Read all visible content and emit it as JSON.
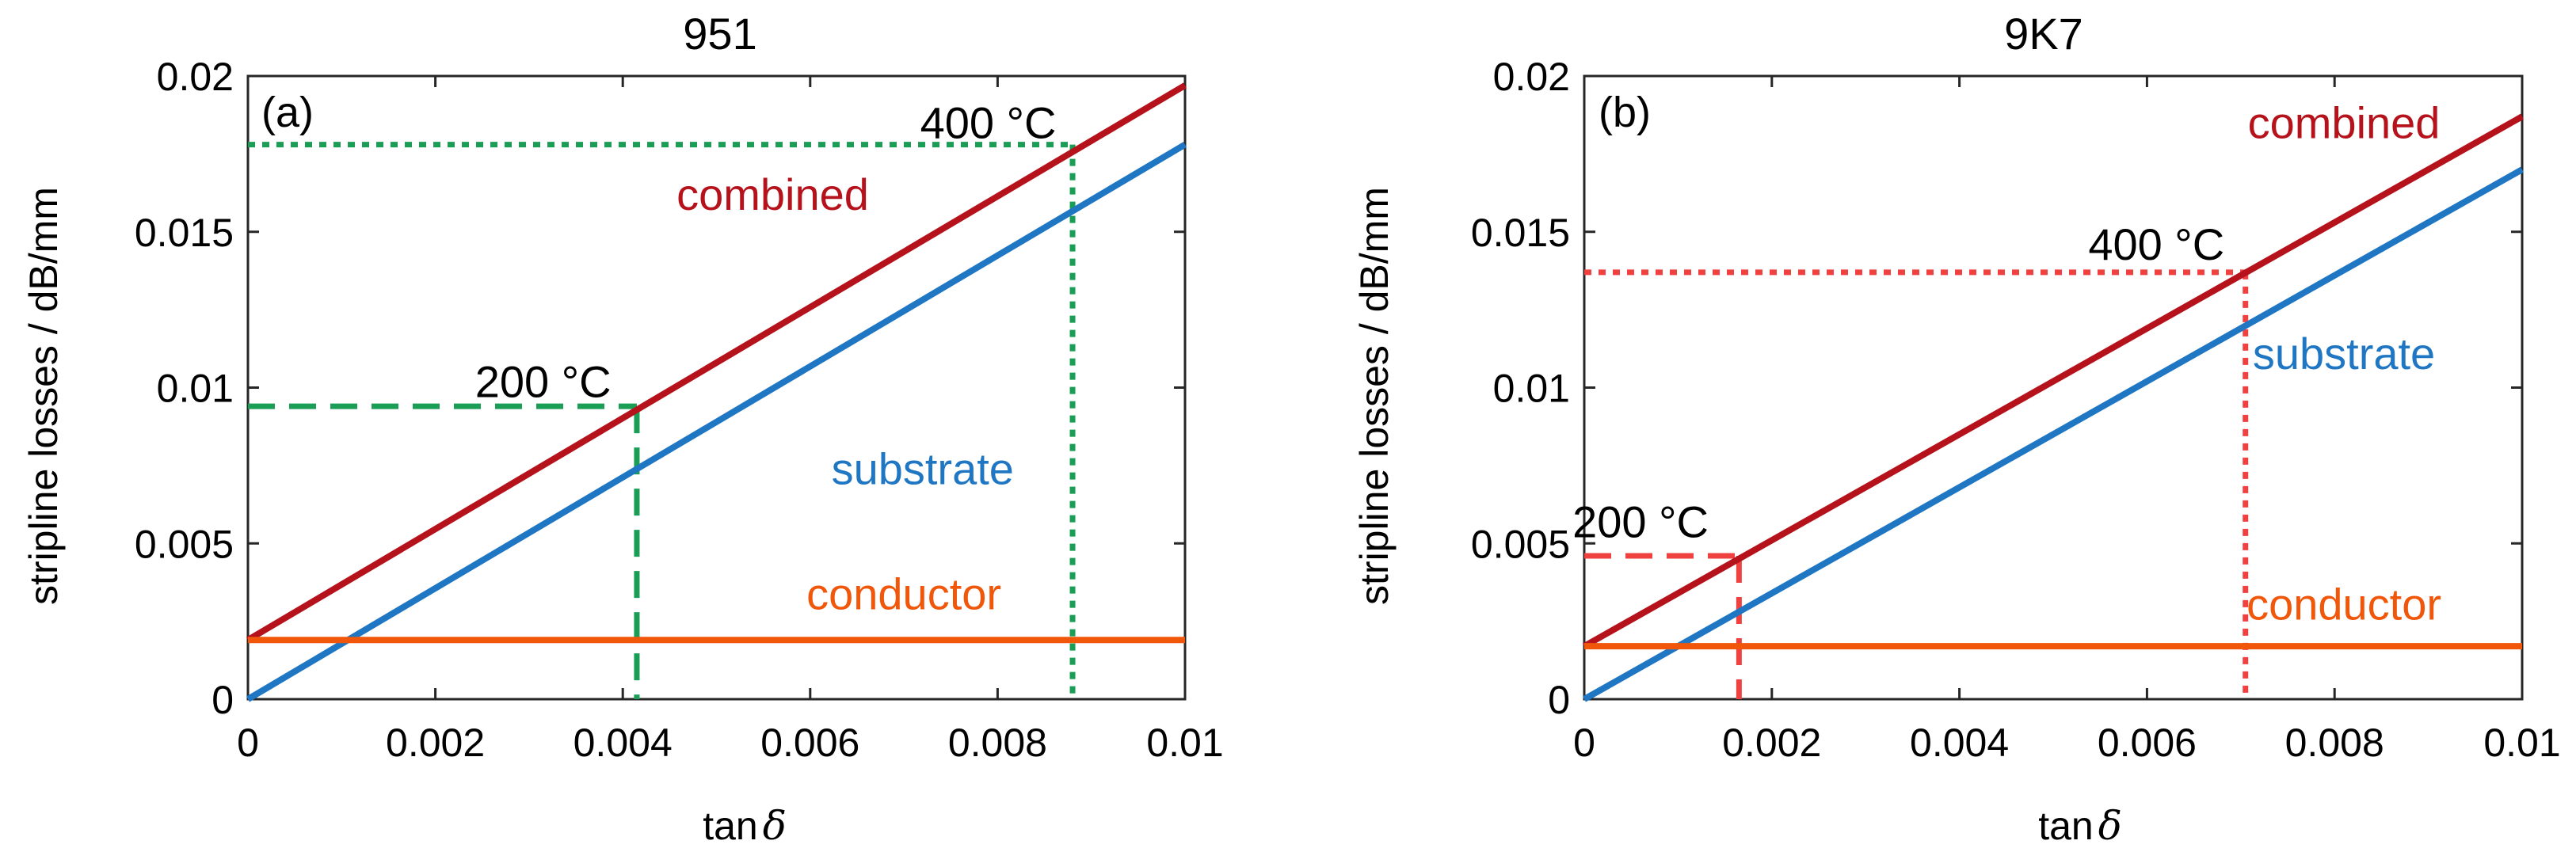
{
  "chart_data": [
    {
      "type": "line",
      "title": "951",
      "panel_label": "(a)",
      "xlabel_main": "tan",
      "xlabel_symbol": "δ",
      "ylabel": "stripline losses / dB/mm",
      "xlim": [
        0,
        0.01
      ],
      "ylim": [
        0,
        0.02
      ],
      "xticks": [
        0,
        0.002,
        0.004,
        0.006,
        0.008,
        0.01
      ],
      "yticks": [
        0,
        0.005,
        0.01,
        0.015,
        0.02
      ],
      "xtick_labels": [
        "0",
        "0.002",
        "0.004",
        "0.006",
        "0.008",
        "0.01"
      ],
      "ytick_labels": [
        "0",
        "0.005",
        "0.01",
        "0.015",
        "0.02"
      ],
      "series": [
        {
          "name": "combined",
          "color": "#b5121b",
          "x": [
            0,
            0.01
          ],
          "y": [
            0.0019,
            0.0197
          ]
        },
        {
          "name": "substrate",
          "color": "#1f77c4",
          "x": [
            0,
            0.01
          ],
          "y": [
            0,
            0.0178
          ]
        },
        {
          "name": "conductor",
          "color": "#f0570a",
          "x": [
            0,
            0.01
          ],
          "y": [
            0.0019,
            0.0019
          ]
        }
      ],
      "markers": [
        {
          "label": "200 °C",
          "x": 0.00415,
          "y": 0.0094,
          "color": "#1a9e55",
          "style": "dashed"
        },
        {
          "label": "400 °C",
          "x": 0.0088,
          "y": 0.0178,
          "color": "#1a9e55",
          "style": "dotted"
        }
      ]
    },
    {
      "type": "line",
      "title": "9K7",
      "panel_label": "(b)",
      "xlabel_main": "tan",
      "xlabel_symbol": "δ",
      "ylabel": "stripline losses / dB/mm",
      "xlim": [
        0,
        0.01
      ],
      "ylim": [
        0,
        0.02
      ],
      "xticks": [
        0,
        0.002,
        0.004,
        0.006,
        0.008,
        0.01
      ],
      "yticks": [
        0,
        0.005,
        0.01,
        0.015,
        0.02
      ],
      "xtick_labels": [
        "0",
        "0.002",
        "0.004",
        "0.006",
        "0.008",
        "0.01"
      ],
      "ytick_labels": [
        "0",
        "0.005",
        "0.01",
        "0.015",
        "0.02"
      ],
      "series": [
        {
          "name": "combined",
          "color": "#b5121b",
          "x": [
            0,
            0.01
          ],
          "y": [
            0.0017,
            0.0187
          ]
        },
        {
          "name": "substrate",
          "color": "#1f77c4",
          "x": [
            0,
            0.01
          ],
          "y": [
            0,
            0.017
          ]
        },
        {
          "name": "conductor",
          "color": "#f0570a",
          "x": [
            0,
            0.01
          ],
          "y": [
            0.0017,
            0.0017
          ]
        }
      ],
      "markers": [
        {
          "label": "200 °C",
          "x": 0.00165,
          "y": 0.0046,
          "color": "#f04141",
          "style": "dashed"
        },
        {
          "label": "400 °C",
          "x": 0.00705,
          "y": 0.0137,
          "color": "#f04141",
          "style": "dotted"
        }
      ]
    }
  ]
}
